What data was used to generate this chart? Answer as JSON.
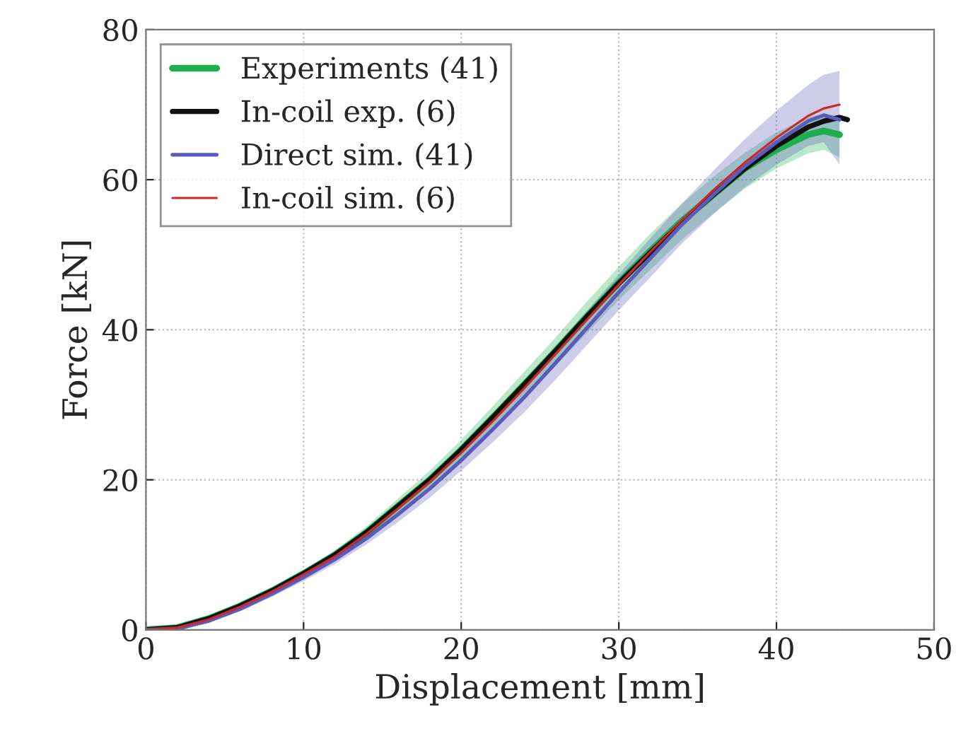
{
  "chart_data": {
    "type": "line",
    "xlabel": "Displacement [mm]",
    "ylabel": "Force [kN]",
    "xlim": [
      0,
      50
    ],
    "xticks": [
      0,
      10,
      20,
      30,
      40,
      50
    ],
    "ylim": [
      0,
      80
    ],
    "yticks": [
      0,
      20,
      40,
      60,
      80
    ],
    "grid": true,
    "legend": "top left",
    "marker": "none",
    "line_style": "solid",
    "series": [
      {
        "name": "Experiments (41)",
        "color": "#1fae4f",
        "x": [
          0,
          2,
          4,
          6,
          8,
          10,
          12,
          14,
          16,
          18,
          20,
          22,
          24,
          26,
          28,
          30,
          32,
          34,
          36,
          38,
          40,
          42,
          43,
          44
        ],
        "values": [
          0,
          0.3,
          1.5,
          3.2,
          5.2,
          7.5,
          10,
          13,
          16.5,
          20,
          24,
          28.3,
          32.7,
          37.2,
          41.8,
          46.3,
          50.5,
          54.5,
          58,
          61.5,
          64,
          66,
          66.5,
          66
        ],
        "lower": [
          0,
          0.2,
          1.3,
          2.9,
          4.8,
          7,
          9.4,
          12.2,
          15.5,
          18.8,
          22.5,
          26.5,
          30.8,
          35.2,
          39.6,
          44,
          48,
          52,
          55.5,
          58.8,
          61.5,
          63.5,
          64,
          63
        ],
        "upper": [
          0,
          0.4,
          1.7,
          3.5,
          5.6,
          8,
          10.6,
          13.8,
          17.5,
          21.2,
          25.3,
          29.8,
          34.4,
          39,
          43.8,
          48.4,
          52.8,
          56.8,
          60.4,
          63.6,
          66.3,
          68.3,
          68.8,
          68.5
        ]
      },
      {
        "name": "In-coil exp. (6)",
        "color": "#111111",
        "x": [
          0,
          2,
          4,
          6,
          8,
          10,
          12,
          14,
          16,
          18,
          20,
          22,
          24,
          26,
          28,
          30,
          32,
          34,
          36,
          38,
          40,
          42,
          43,
          44,
          44.5
        ],
        "values": [
          0,
          0.3,
          1.5,
          3.2,
          5.2,
          7.5,
          10,
          13,
          16.5,
          20,
          24,
          28.3,
          32.7,
          37.2,
          41.8,
          46.2,
          50.3,
          54.3,
          58,
          61.5,
          64.5,
          67,
          67.8,
          68.3,
          68
        ]
      },
      {
        "name": "Direct sim. (41)",
        "color": "#5b5bb8",
        "x": [
          0,
          2,
          4,
          6,
          8,
          10,
          12,
          14,
          16,
          18,
          20,
          22,
          24,
          26,
          28,
          30,
          32,
          34,
          36,
          38,
          40,
          42,
          43,
          44
        ],
        "values": [
          0,
          0.2,
          1.2,
          2.8,
          4.8,
          7,
          9.4,
          12.2,
          15.4,
          18.8,
          22.6,
          26.7,
          31,
          35.6,
          40.3,
          45,
          49.5,
          54,
          58,
          61.8,
          65,
          67.8,
          68.6,
          68
        ],
        "lower": [
          0,
          0.1,
          1,
          2.5,
          4.4,
          6.5,
          8.8,
          11.4,
          14.4,
          17.6,
          21.2,
          25,
          29,
          33.4,
          38,
          42.6,
          47,
          51.5,
          55.4,
          59,
          62,
          64.5,
          65,
          62
        ],
        "upper": [
          0,
          0.3,
          1.4,
          3.1,
          5.2,
          7.5,
          10,
          13,
          16.4,
          20,
          24,
          28.4,
          33,
          37.8,
          42.6,
          47.4,
          52.2,
          56.8,
          61.2,
          65.4,
          69.2,
          72.6,
          74,
          74.5
        ]
      },
      {
        "name": "In-coil sim. (6)",
        "color": "#cc2a2a",
        "x": [
          0,
          2,
          4,
          6,
          8,
          10,
          12,
          14,
          16,
          18,
          20,
          22,
          24,
          26,
          28,
          30,
          32,
          34,
          36,
          38,
          40,
          42,
          43,
          44
        ],
        "values": [
          0,
          0.3,
          1.4,
          3.1,
          5.1,
          7.4,
          9.8,
          12.8,
          16.2,
          19.7,
          23.6,
          27.8,
          32.2,
          36.8,
          41.4,
          46,
          50.4,
          54.6,
          58.6,
          62.3,
          65.6,
          68.5,
          69.5,
          70
        ]
      }
    ]
  }
}
